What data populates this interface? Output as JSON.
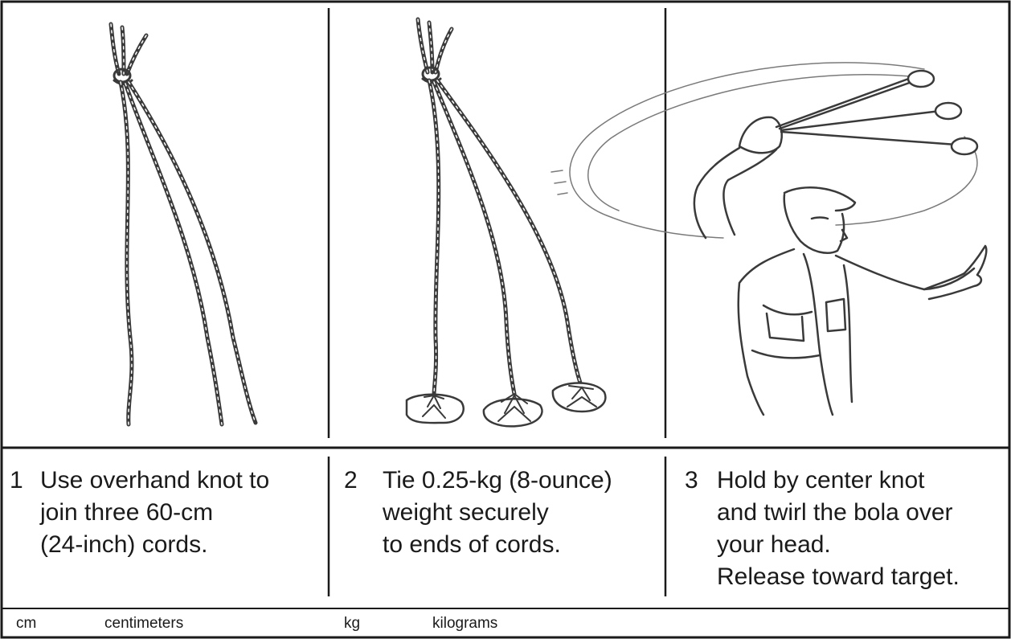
{
  "steps": [
    {
      "number": "1",
      "lines": [
        "Use overhand knot to",
        "join three 60-cm",
        "(24-inch) cords."
      ]
    },
    {
      "number": "2",
      "lines": [
        "Tie 0.25-kg (8-ounce)",
        "weight securely",
        "to ends of cords."
      ]
    },
    {
      "number": "3",
      "lines": [
        "Hold by center knot",
        "and twirl the bola over",
        "your head.",
        "Release toward target."
      ]
    }
  ],
  "abbreviations": [
    {
      "abbr": "cm",
      "meaning": "centimeters"
    },
    {
      "abbr": "kg",
      "meaning": "kilograms"
    }
  ],
  "colors": {
    "ink": "#1a1a1a",
    "sketch": "#3a3a3a",
    "background": "#ffffff"
  }
}
